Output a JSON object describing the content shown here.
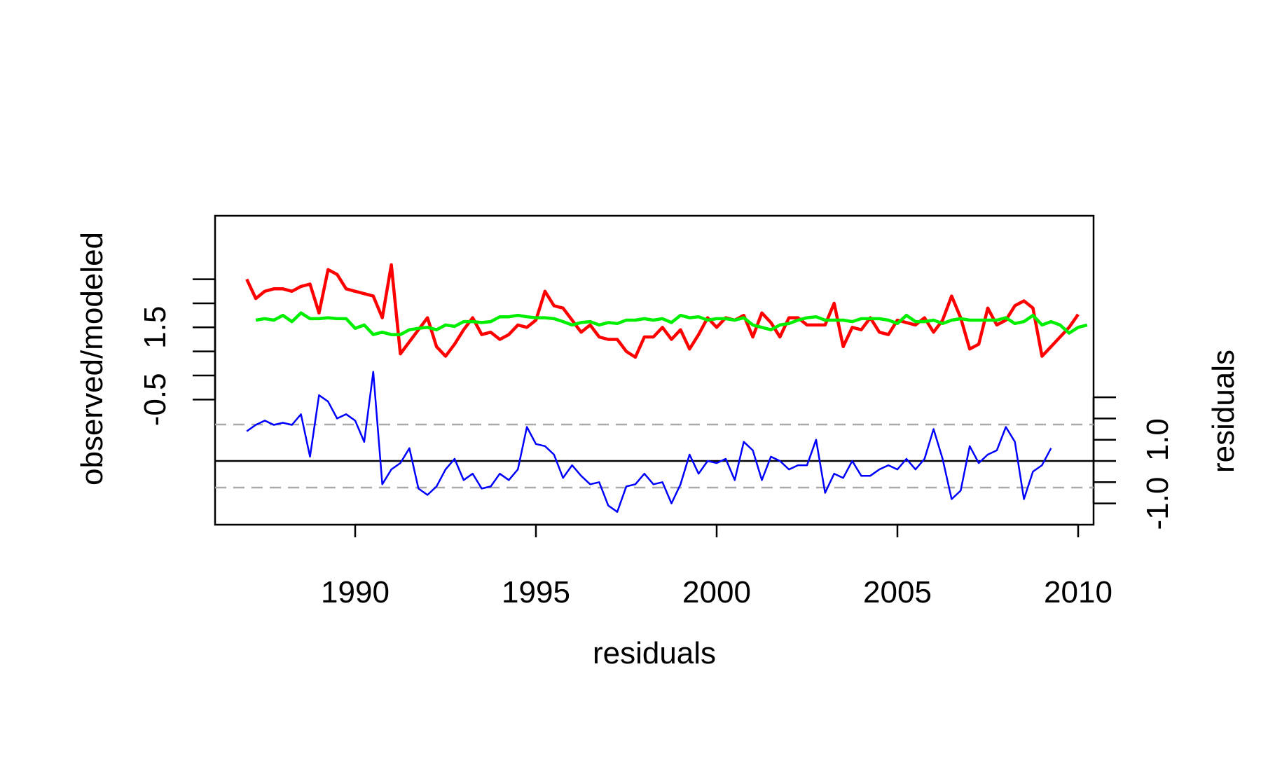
{
  "chart_data": {
    "type": "line",
    "title": "",
    "xlabel": "residuals",
    "ylabel_left": "observed/modeled",
    "ylabel_right": "residuals",
    "x_ticks": [
      "1990",
      "1995",
      "2000",
      "2005",
      "2010"
    ],
    "left_tick_labels": [
      "-0.5",
      "1.5"
    ],
    "right_tick_labels": [
      "-1.0",
      "1.0"
    ],
    "grid": false,
    "legend": "none",
    "colors": {
      "observed": "#ff0000",
      "modeled": "#00ee00",
      "residuals": "#0000ff",
      "reference": "#000000",
      "threshold": "#aaaaaa"
    },
    "start_year": 1987.0,
    "step_years": 0.25,
    "series": [
      {
        "role": "observed",
        "values": [
          2.0,
          1.6,
          1.75,
          1.8,
          1.8,
          1.75,
          1.85,
          1.9,
          1.3,
          2.2,
          2.1,
          1.8,
          1.75,
          1.7,
          1.65,
          1.2,
          2.3,
          0.45,
          0.7,
          0.95,
          1.2,
          0.6,
          0.4,
          0.65,
          0.95,
          1.2,
          0.85,
          0.9,
          0.75,
          0.85,
          1.05,
          1.0,
          1.15,
          1.75,
          1.45,
          1.4,
          1.15,
          0.9,
          1.05,
          0.8,
          0.75,
          0.75,
          0.5,
          0.38,
          0.8,
          0.8,
          1.0,
          0.75,
          0.95,
          0.55,
          0.85,
          1.2,
          1.0,
          1.2,
          1.15,
          1.25,
          0.8,
          1.3,
          1.1,
          0.8,
          1.2,
          1.2,
          1.05,
          1.05,
          1.05,
          1.5,
          0.6,
          1.0,
          0.95,
          1.2,
          0.9,
          0.85,
          1.15,
          1.1,
          1.05,
          1.2,
          0.9,
          1.15,
          1.65,
          1.2,
          0.55,
          0.65,
          1.4,
          1.05,
          1.15,
          1.45,
          1.55,
          1.4,
          0.4,
          0.6,
          0.8,
          1.0,
          1.27
        ]
      },
      {
        "role": "modeled",
        "values": [
          null,
          1.15,
          1.18,
          1.15,
          1.25,
          1.12,
          1.3,
          1.18,
          1.18,
          1.2,
          1.18,
          1.18,
          0.98,
          1.05,
          0.85,
          0.9,
          0.85,
          0.85,
          0.95,
          0.98,
          1.0,
          0.95,
          1.05,
          1.02,
          1.12,
          1.12,
          1.1,
          1.12,
          1.22,
          1.22,
          1.25,
          1.22,
          1.2,
          1.2,
          1.18,
          1.12,
          1.05,
          1.1,
          1.12,
          1.05,
          1.1,
          1.08,
          1.15,
          1.15,
          1.18,
          1.15,
          1.18,
          1.1,
          1.25,
          1.2,
          1.22,
          1.15,
          1.18,
          1.18,
          1.15,
          1.2,
          1.05,
          1.0,
          0.95,
          1.05,
          1.08,
          1.15,
          1.2,
          1.22,
          1.15,
          1.15,
          1.15,
          1.12,
          1.18,
          1.18,
          1.18,
          1.15,
          1.08,
          1.25,
          1.12,
          1.12,
          1.15,
          1.08,
          1.15,
          1.18,
          1.15,
          1.15,
          1.15,
          1.15,
          1.2,
          1.08,
          1.12,
          1.25,
          1.05,
          1.12,
          1.05,
          0.88,
          1.0,
          1.05
        ]
      },
      {
        "role": "residuals",
        "values": [
          0.7,
          0.85,
          0.95,
          0.85,
          0.9,
          0.85,
          1.1,
          0.1,
          1.55,
          1.4,
          1.0,
          1.1,
          0.95,
          0.45,
          2.1,
          -0.55,
          -0.2,
          -0.05,
          0.3,
          -0.65,
          -0.8,
          -0.6,
          -0.2,
          0.05,
          -0.45,
          -0.3,
          -0.65,
          -0.6,
          -0.3,
          -0.45,
          -0.2,
          0.8,
          0.4,
          0.35,
          0.15,
          -0.4,
          -0.1,
          -0.35,
          -0.55,
          -0.5,
          -1.05,
          -1.2,
          -0.6,
          -0.55,
          -0.3,
          -0.55,
          -0.5,
          -1.0,
          -0.55,
          0.15,
          -0.3,
          0.0,
          -0.05,
          0.05,
          -0.45,
          0.45,
          0.25,
          -0.45,
          0.1,
          0.0,
          -0.2,
          -0.1,
          -0.1,
          0.5,
          -0.75,
          -0.3,
          -0.4,
          0.0,
          -0.35,
          -0.35,
          -0.2,
          -0.1,
          -0.2,
          0.05,
          -0.2,
          0.05,
          0.75,
          0.05,
          -0.9,
          -0.7,
          0.35,
          -0.05,
          0.15,
          0.25,
          0.8,
          0.45,
          -0.9,
          -0.25,
          -0.1,
          0.3
        ]
      }
    ]
  }
}
